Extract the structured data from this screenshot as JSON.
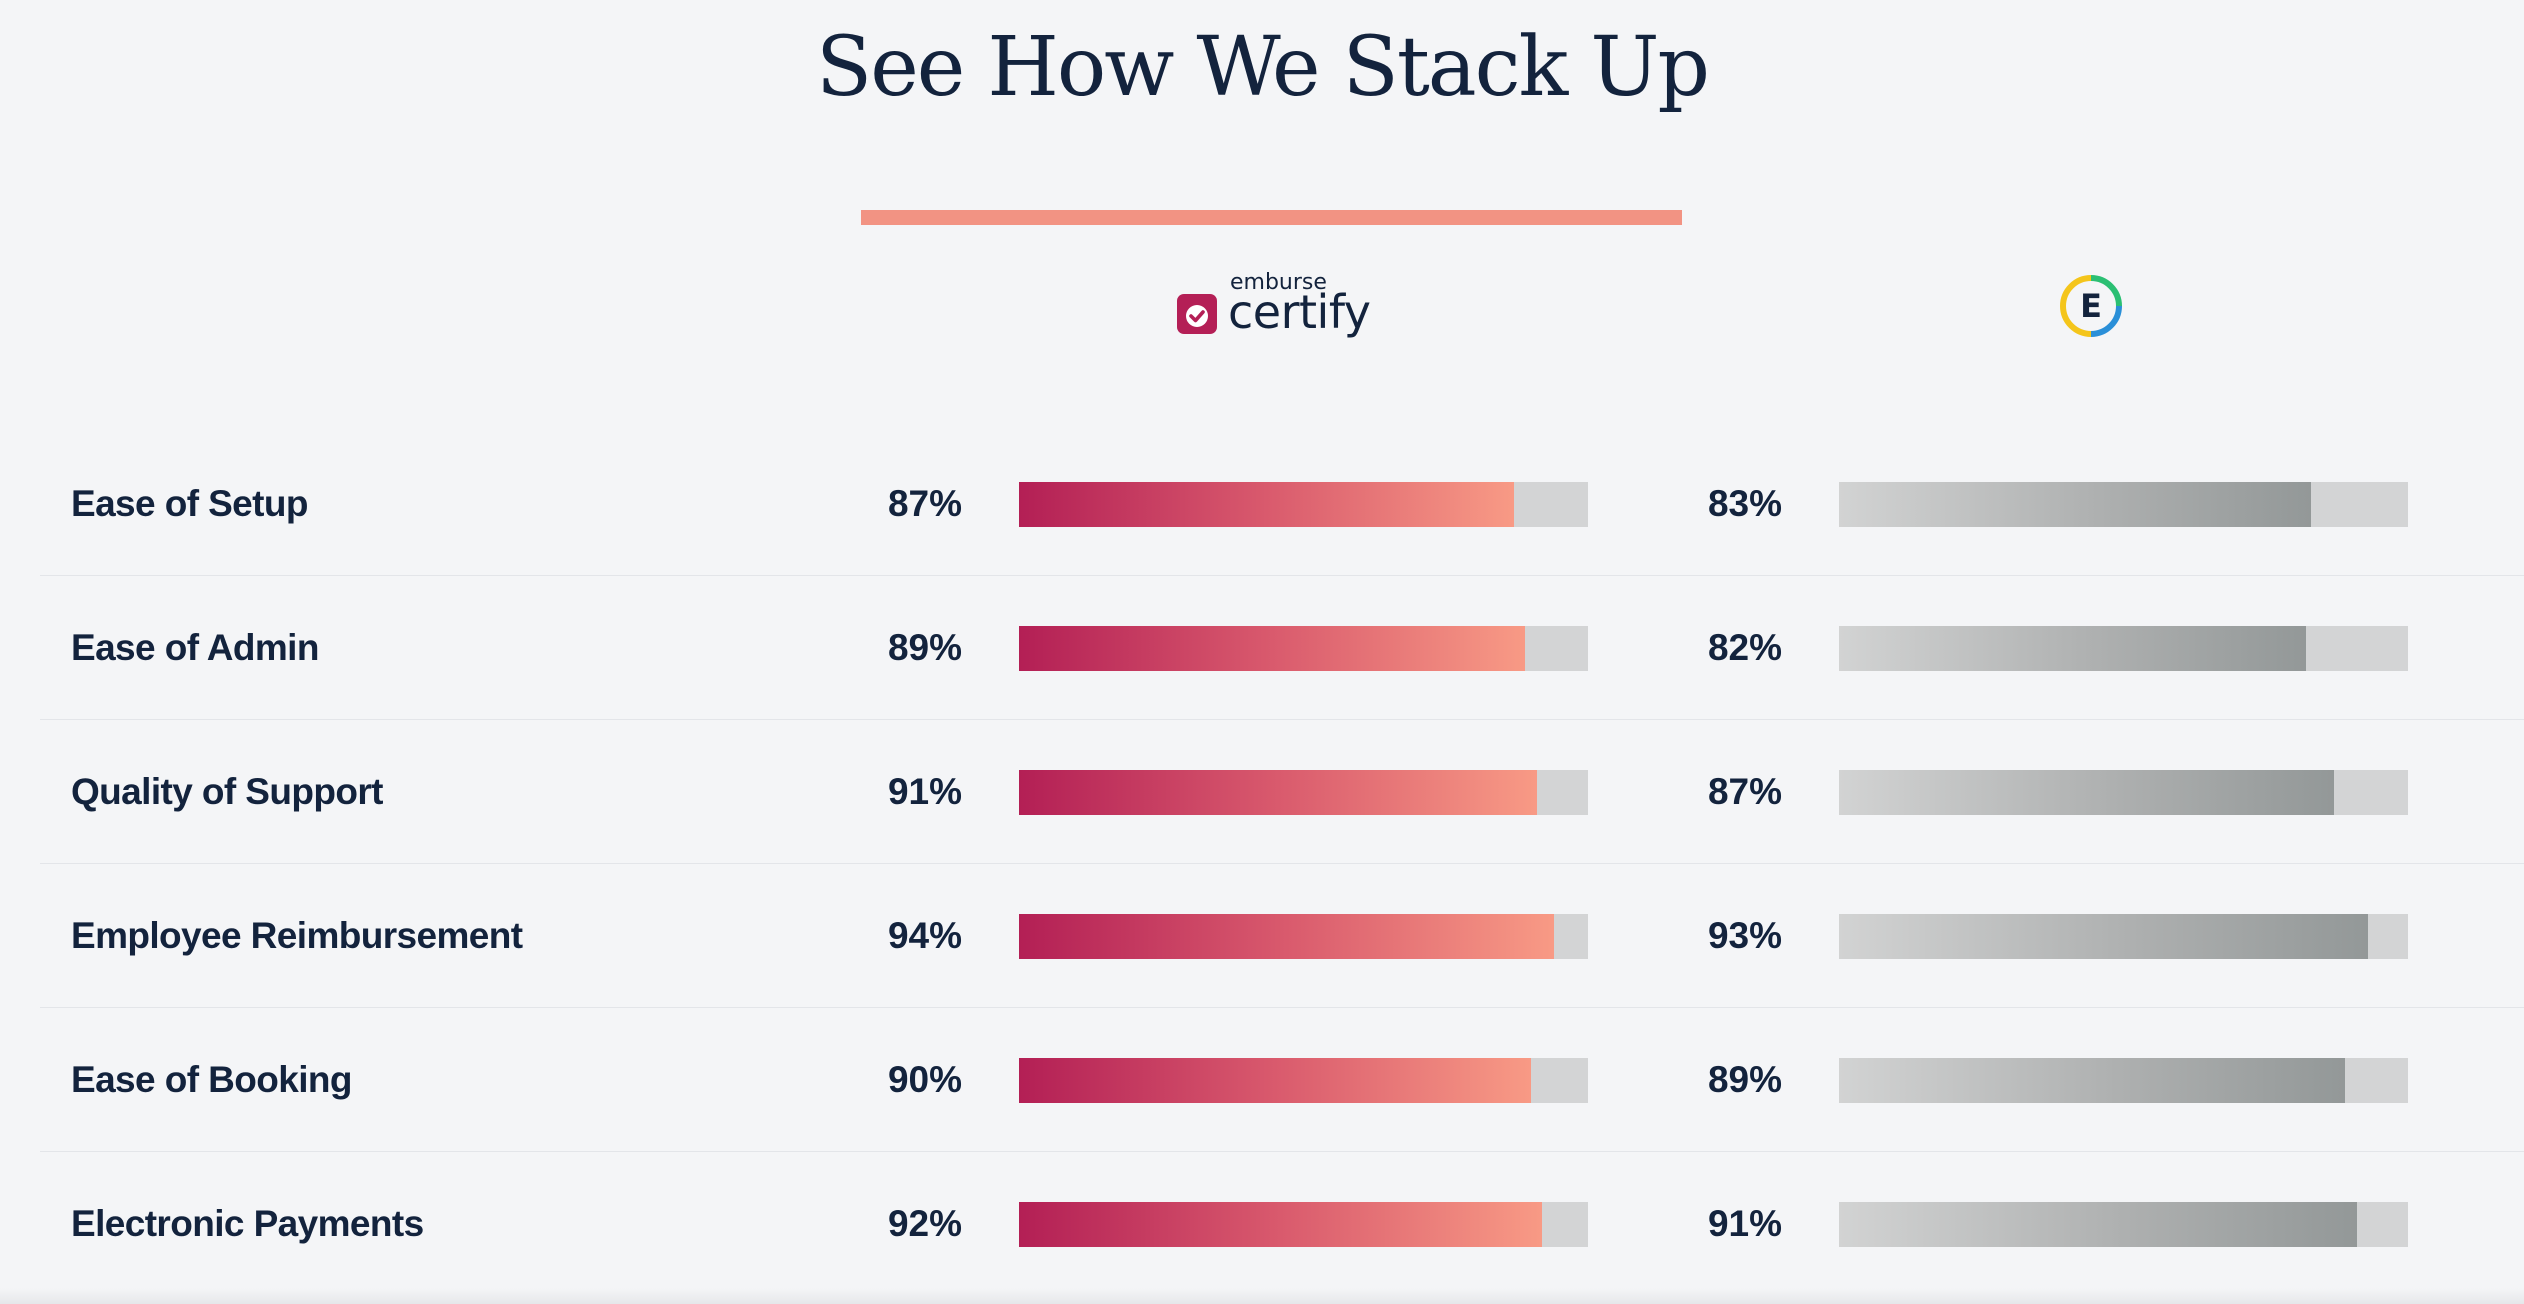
{
  "title": "See How We Stack Up",
  "colors": {
    "accent": "#f29383",
    "certify_start": "#b31f55",
    "certify_end": "#f89a85",
    "competitor_start": "#d2d3d3",
    "competitor_end": "#939898",
    "track": "#d3d4d5",
    "text": "#13233d"
  },
  "brands": {
    "certify": {
      "small_text": "emburse",
      "big_text": "certify",
      "icon": "checkmark-badge-icon"
    },
    "competitor": {
      "letter": "E",
      "icon": "expensify-logo-icon"
    }
  },
  "chart_data": {
    "type": "bar",
    "title": "See How We Stack Up",
    "categories": [
      "Ease of Setup",
      "Ease of Admin",
      "Quality of Support",
      "Employee Reimbursement",
      "Ease of Booking",
      "Electronic Payments"
    ],
    "series": [
      {
        "name": "emburse certify",
        "values": [
          87,
          89,
          91,
          94,
          90,
          92
        ]
      },
      {
        "name": "Expensify",
        "values": [
          83,
          82,
          87,
          93,
          89,
          91
        ]
      }
    ],
    "value_suffix": "%",
    "ylim": [
      0,
      100
    ],
    "orientation": "horizontal",
    "grid": false
  }
}
